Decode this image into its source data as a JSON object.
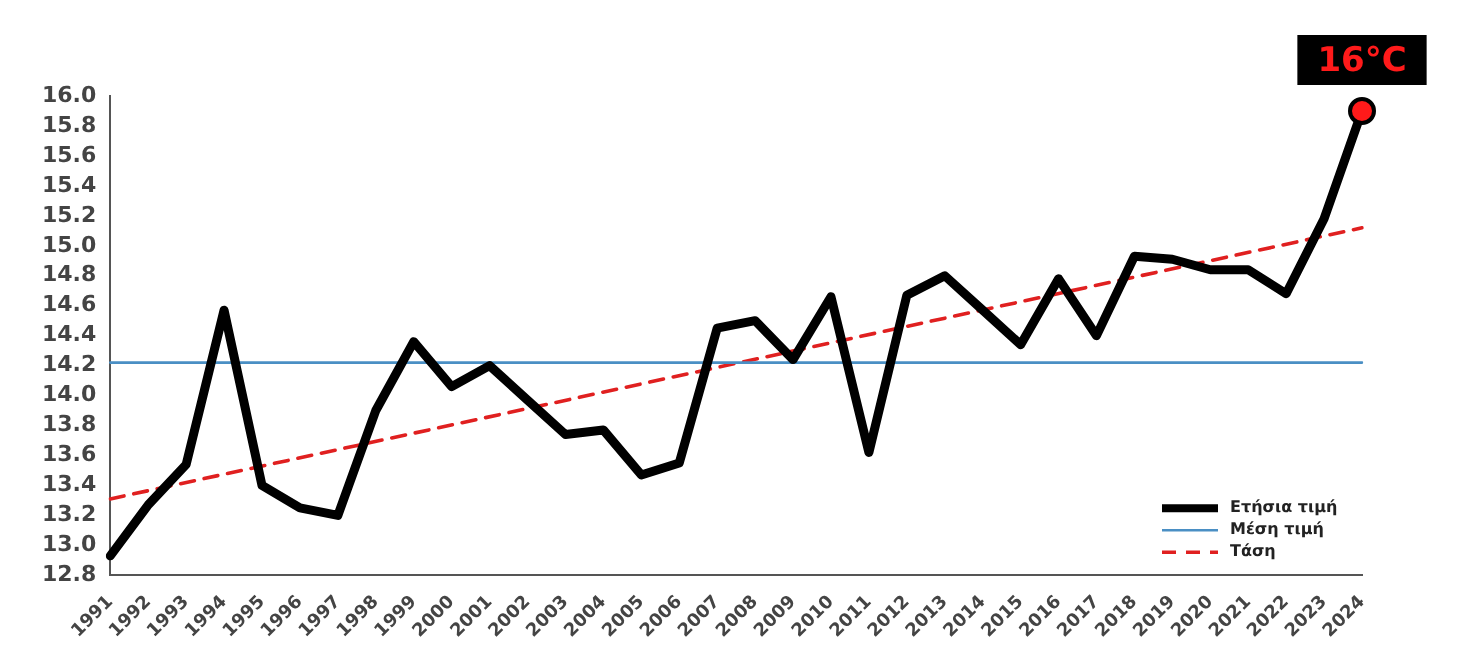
{
  "chart_data": {
    "type": "line",
    "categories": [
      "1991",
      "1992",
      "1993",
      "1994",
      "1995",
      "1996",
      "1997",
      "1998",
      "1999",
      "2000",
      "2001",
      "2002",
      "2003",
      "2004",
      "2005",
      "2006",
      "2007",
      "2008",
      "2009",
      "2010",
      "2011",
      "2012",
      "2013",
      "2014",
      "2015",
      "2016",
      "2017",
      "2018",
      "2019",
      "2020",
      "2021",
      "2022",
      "2023",
      "2024"
    ],
    "series": [
      {
        "name": "Ετήσια τιμή",
        "color": "#000000",
        "line_style": "solid",
        "values": [
          12.93,
          13.27,
          13.54,
          14.57,
          13.4,
          13.25,
          13.2,
          13.9,
          14.36,
          14.06,
          14.2,
          13.97,
          13.74,
          13.77,
          13.47,
          13.55,
          14.45,
          14.5,
          14.24,
          14.66,
          13.62,
          14.67,
          14.8,
          14.57,
          14.34,
          14.78,
          14.4,
          14.93,
          14.91,
          14.84,
          14.84,
          14.68,
          15.18,
          15.9
        ]
      },
      {
        "name": "Μέση τιμή",
        "color": "#4a8fc4",
        "line_style": "solid",
        "values": [
          14.22,
          null,
          null,
          null,
          null,
          null,
          null,
          null,
          null,
          null,
          null,
          null,
          null,
          null,
          null,
          null,
          null,
          null,
          null,
          null,
          null,
          null,
          null,
          null,
          null,
          null,
          null,
          null,
          null,
          null,
          null,
          null,
          null,
          14.22
        ]
      },
      {
        "name": "Τάση",
        "color": "#e02020",
        "line_style": "dashed",
        "values": [
          13.31,
          null,
          null,
          null,
          null,
          null,
          null,
          null,
          null,
          null,
          null,
          null,
          null,
          null,
          null,
          null,
          null,
          null,
          null,
          null,
          null,
          null,
          null,
          null,
          null,
          null,
          null,
          null,
          null,
          null,
          null,
          null,
          null,
          15.12
        ]
      }
    ],
    "ylim": [
      12.8,
      16.0
    ],
    "yticks": [
      12.8,
      {
        "value": 13,
        "label": "13.0"
      },
      13.2,
      13.4,
      13.6,
      13.8,
      {
        "value": 14,
        "label": "14.0"
      },
      14.2,
      14.4,
      14.6,
      14.8,
      {
        "value": 15,
        "label": "15.0"
      },
      15.2,
      15.4,
      15.6,
      15.8,
      {
        "value": 16,
        "label": "16.0"
      }
    ],
    "grid": false,
    "legend": "bottom right",
    "marker": "none",
    "annotations": [
      {
        "text": "16°C",
        "x": "2024",
        "y": 15.9
      }
    ]
  }
}
